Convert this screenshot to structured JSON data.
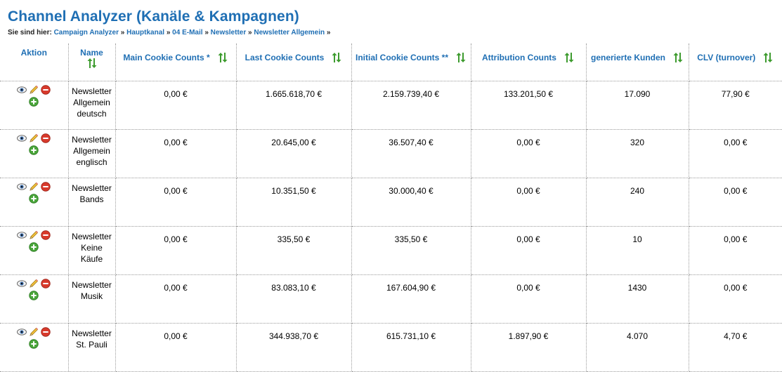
{
  "page": {
    "title": "Channel Analyzer (Kanäle & Kampagnen)",
    "breadcrumb_prefix": "Sie sind hier:",
    "breadcrumbs": [
      "Campaign Analyzer",
      "Hauptkanal",
      "04 E-Mail",
      "Newsletter",
      "Newsletter Allgemein"
    ],
    "breadcrumb_separator": "»"
  },
  "table": {
    "headers": {
      "aktion": "Aktion",
      "name": "Name",
      "main_cookie": "Main Cookie Counts *",
      "last_cookie": "Last Cookie Counts",
      "initial_cookie": "Initial Cookie Counts **",
      "attribution": "Attribution Counts",
      "kunden": "generierte Kunden",
      "clv": "CLV (turnover)"
    },
    "rows": [
      {
        "name": "Newsletter Allgemein deutsch",
        "main": "0,00 €",
        "last": "1.665.618,70 €",
        "initial": "2.159.739,40 €",
        "attribution": "133.201,50 €",
        "kunden": "17.090",
        "clv": "77,90 €"
      },
      {
        "name": "Newsletter Allgemein englisch",
        "main": "0,00 €",
        "last": "20.645,00 €",
        "initial": "36.507,40 €",
        "attribution": "0,00 €",
        "kunden": "320",
        "clv": "0,00 €"
      },
      {
        "name": "Newsletter Bands",
        "main": "0,00 €",
        "last": "10.351,50 €",
        "initial": "30.000,40 €",
        "attribution": "0,00 €",
        "kunden": "240",
        "clv": "0,00 €"
      },
      {
        "name": "Newsletter Keine Käufe",
        "main": "0,00 €",
        "last": "335,50 €",
        "initial": "335,50 €",
        "attribution": "0,00 €",
        "kunden": "10",
        "clv": "0,00 €"
      },
      {
        "name": "Newsletter Musik",
        "main": "0,00 €",
        "last": "83.083,10 €",
        "initial": "167.604,90 €",
        "attribution": "0,00 €",
        "kunden": "1430",
        "clv": "0,00 €"
      },
      {
        "name": "Newsletter St. Pauli",
        "main": "0,00 €",
        "last": "344.938,70 €",
        "initial": "615.731,10 €",
        "attribution": "1.897,90 €",
        "kunden": "4.070",
        "clv": "4,70 €"
      }
    ]
  },
  "icons": {
    "view": "eye-icon",
    "edit": "pencil-icon",
    "delete": "minus-circle-icon",
    "add": "plus-circle-icon",
    "sort": "sort-arrows-icon"
  },
  "colors": {
    "title": "#1f6fb4",
    "sort_icon": "#3d9b2e",
    "delete": "#d83a2c",
    "add": "#4aa53a"
  }
}
